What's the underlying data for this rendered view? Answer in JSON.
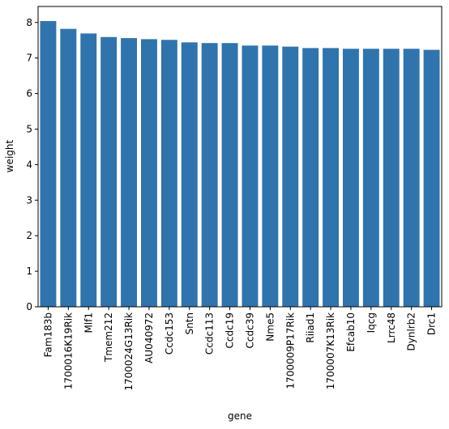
{
  "chart_data": {
    "type": "bar",
    "xlabel": "gene",
    "ylabel": "weight",
    "ylim": [
      0,
      8.45
    ],
    "yticks": [
      0,
      1,
      2,
      3,
      4,
      5,
      6,
      7,
      8
    ],
    "bar_color": "#2f74ad",
    "grid": false,
    "categories": [
      "Fam183b",
      "1700016K19Rik",
      "Mlf1",
      "Tmem212",
      "1700024G13Rik",
      "AU040972",
      "Ccdc153",
      "Sntn",
      "Ccdc113",
      "Ccdc19",
      "Ccdc39",
      "Nme5",
      "1700009P17Rik",
      "Riiad1",
      "1700007K13Rik",
      "Efcab10",
      "Iqcg",
      "Lrrc48",
      "Dynlrb2",
      "Drc1"
    ],
    "values": [
      8.04,
      7.82,
      7.69,
      7.59,
      7.56,
      7.53,
      7.51,
      7.44,
      7.42,
      7.42,
      7.35,
      7.35,
      7.32,
      7.28,
      7.28,
      7.26,
      7.26,
      7.26,
      7.26,
      7.23
    ]
  }
}
